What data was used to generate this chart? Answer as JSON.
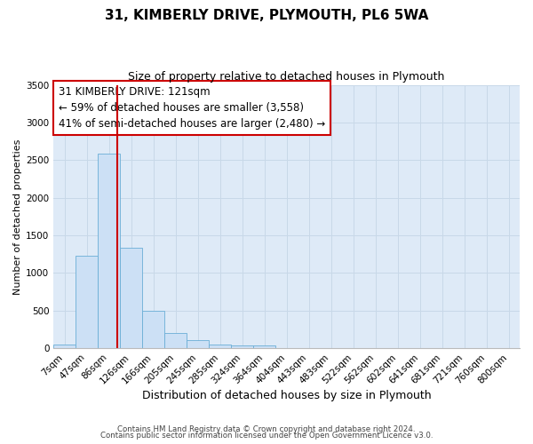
{
  "title": "31, KIMBERLY DRIVE, PLYMOUTH, PL6 5WA",
  "subtitle": "Size of property relative to detached houses in Plymouth",
  "xlabel": "Distribution of detached houses by size in Plymouth",
  "ylabel": "Number of detached properties",
  "bar_labels": [
    "7sqm",
    "47sqm",
    "86sqm",
    "126sqm",
    "166sqm",
    "205sqm",
    "245sqm",
    "285sqm",
    "324sqm",
    "364sqm",
    "404sqm",
    "443sqm",
    "483sqm",
    "522sqm",
    "562sqm",
    "602sqm",
    "641sqm",
    "681sqm",
    "721sqm",
    "760sqm",
    "800sqm"
  ],
  "bar_heights": [
    50,
    1230,
    2590,
    1340,
    500,
    200,
    110,
    55,
    40,
    35,
    0,
    0,
    0,
    0,
    0,
    0,
    0,
    0,
    0,
    0,
    0
  ],
  "bar_color": "#cce0f5",
  "bar_edge_color": "#6aaed6",
  "vline_color": "#cc0000",
  "annotation_line1": "31 KIMBERLY DRIVE: 121sqm",
  "annotation_line2": "← 59% of detached houses are smaller (3,558)",
  "annotation_line3": "41% of semi-detached houses are larger (2,480) →",
  "annotation_box_edge_color": "#cc0000",
  "ylim": [
    0,
    3500
  ],
  "yticks": [
    0,
    500,
    1000,
    1500,
    2000,
    2500,
    3000,
    3500
  ],
  "grid_color": "#c8d8e8",
  "background_color": "#deeaf7",
  "footer_line1": "Contains HM Land Registry data © Crown copyright and database right 2024.",
  "footer_line2": "Contains public sector information licensed under the Open Government Licence v3.0.",
  "title_fontsize": 11,
  "subtitle_fontsize": 9,
  "xlabel_fontsize": 9,
  "ylabel_fontsize": 8,
  "annotation_fontsize": 8.5,
  "tick_fontsize": 7.5
}
